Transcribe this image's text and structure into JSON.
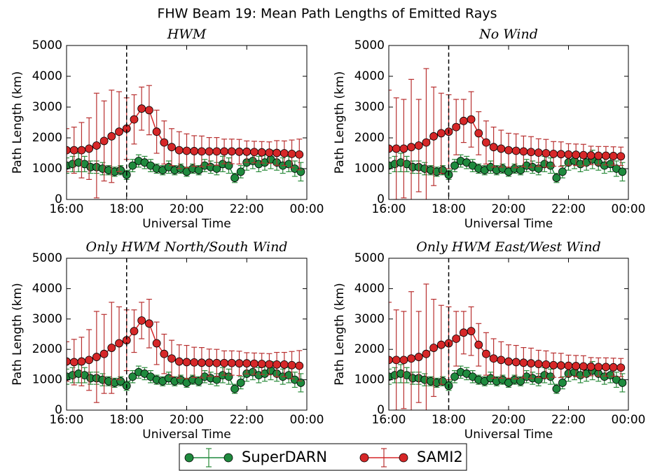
{
  "title": "FHW Beam 19: Mean Path Lengths of Emitted Rays",
  "chart_data": [
    {
      "type": "errorbar",
      "title": "HWM",
      "xlabel": "Universal Time",
      "ylabel": "Path Length (km)",
      "xlim": [
        16,
        24
      ],
      "ylim": [
        0,
        5000
      ],
      "xticks": [
        {
          "value": 16,
          "label": "16:00"
        },
        {
          "value": 18,
          "label": "18:00"
        },
        {
          "value": 20,
          "label": "20:00"
        },
        {
          "value": 22,
          "label": "22:00"
        },
        {
          "value": 24,
          "label": "00:00"
        }
      ],
      "yticks": [
        0,
        1000,
        2000,
        3000,
        4000,
        5000
      ],
      "vline": 18,
      "series": [
        {
          "name": "SuperDARN",
          "color": "#1f8a3e",
          "x": [
            16.0,
            16.2,
            16.4,
            16.6,
            16.8,
            17.0,
            17.2,
            17.4,
            17.6,
            17.8,
            18.0,
            18.2,
            18.4,
            18.6,
            18.8,
            19.0,
            19.2,
            19.4,
            19.6,
            19.8,
            20.0,
            20.2,
            20.4,
            20.6,
            20.8,
            21.0,
            21.2,
            21.4,
            21.6,
            21.8,
            22.0,
            22.2,
            22.4,
            22.6,
            22.8,
            23.0,
            23.2,
            23.4,
            23.6,
            23.8
          ],
          "values": [
            1100,
            1150,
            1200,
            1150,
            1050,
            1050,
            1000,
            950,
            900,
            950,
            800,
            1100,
            1250,
            1200,
            1100,
            1000,
            950,
            1050,
            950,
            1000,
            900,
            1000,
            950,
            1100,
            1050,
            1000,
            1150,
            1100,
            700,
            900,
            1200,
            1250,
            1150,
            1200,
            1300,
            1200,
            1100,
            1150,
            1000,
            900
          ],
          "errors": [
            250,
            250,
            300,
            250,
            200,
            200,
            200,
            150,
            150,
            150,
            150,
            200,
            200,
            200,
            200,
            150,
            150,
            200,
            150,
            150,
            150,
            150,
            150,
            200,
            200,
            200,
            250,
            250,
            150,
            200,
            250,
            250,
            250,
            250,
            300,
            250,
            250,
            250,
            250,
            300
          ]
        },
        {
          "name": "SAMI2",
          "color": "#d62728",
          "x": [
            16.0,
            16.25,
            16.5,
            16.75,
            17.0,
            17.25,
            17.5,
            17.75,
            18.0,
            18.25,
            18.5,
            18.75,
            19.0,
            19.25,
            19.5,
            19.75,
            20.0,
            20.25,
            20.5,
            20.75,
            21.0,
            21.25,
            21.5,
            21.75,
            22.0,
            22.25,
            22.5,
            22.75,
            23.0,
            23.25,
            23.5,
            23.75
          ],
          "values": [
            1600,
            1600,
            1600,
            1650,
            1750,
            1900,
            2050,
            2200,
            2300,
            2600,
            2950,
            2900,
            2200,
            1850,
            1700,
            1600,
            1580,
            1570,
            1560,
            1560,
            1560,
            1560,
            1560,
            1550,
            1550,
            1540,
            1530,
            1520,
            1510,
            1500,
            1480,
            1460
          ],
          "errors": [
            700,
            750,
            900,
            1000,
            1700,
            1300,
            1500,
            1300,
            1000,
            800,
            700,
            800,
            700,
            700,
            600,
            600,
            550,
            500,
            500,
            450,
            450,
            400,
            400,
            400,
            350,
            350,
            350,
            350,
            400,
            400,
            450,
            500
          ]
        }
      ]
    },
    {
      "type": "errorbar",
      "title": "No Wind",
      "xlabel": "Universal Time",
      "ylabel": "Path Length (km)",
      "xlim": [
        16,
        24
      ],
      "ylim": [
        0,
        5000
      ],
      "xticks": [
        {
          "value": 16,
          "label": "16:00"
        },
        {
          "value": 18,
          "label": "18:00"
        },
        {
          "value": 20,
          "label": "20:00"
        },
        {
          "value": 22,
          "label": "22:00"
        },
        {
          "value": 24,
          "label": "00:00"
        }
      ],
      "yticks": [
        0,
        1000,
        2000,
        3000,
        4000,
        5000
      ],
      "vline": 18,
      "series": [
        {
          "name": "SuperDARN",
          "color": "#1f8a3e",
          "x": [
            16.0,
            16.2,
            16.4,
            16.6,
            16.8,
            17.0,
            17.2,
            17.4,
            17.6,
            17.8,
            18.0,
            18.2,
            18.4,
            18.6,
            18.8,
            19.0,
            19.2,
            19.4,
            19.6,
            19.8,
            20.0,
            20.2,
            20.4,
            20.6,
            20.8,
            21.0,
            21.2,
            21.4,
            21.6,
            21.8,
            22.0,
            22.2,
            22.4,
            22.6,
            22.8,
            23.0,
            23.2,
            23.4,
            23.6,
            23.8
          ],
          "values": [
            1100,
            1150,
            1200,
            1150,
            1050,
            1050,
            1000,
            950,
            900,
            950,
            800,
            1100,
            1250,
            1200,
            1100,
            1000,
            950,
            1050,
            950,
            1000,
            900,
            1000,
            950,
            1100,
            1050,
            1000,
            1150,
            1100,
            700,
            900,
            1200,
            1250,
            1150,
            1200,
            1300,
            1200,
            1100,
            1150,
            1000,
            900
          ],
          "errors": [
            250,
            250,
            300,
            250,
            200,
            200,
            200,
            150,
            150,
            150,
            150,
            200,
            200,
            200,
            200,
            150,
            150,
            200,
            150,
            150,
            150,
            150,
            150,
            200,
            200,
            200,
            250,
            250,
            150,
            200,
            250,
            250,
            250,
            250,
            300,
            250,
            250,
            250,
            250,
            300
          ]
        },
        {
          "name": "SAMI2",
          "color": "#d62728",
          "x": [
            16.0,
            16.25,
            16.5,
            16.75,
            17.0,
            17.25,
            17.5,
            17.75,
            18.0,
            18.25,
            18.5,
            18.75,
            19.0,
            19.25,
            19.5,
            19.75,
            20.0,
            20.25,
            20.5,
            20.75,
            21.0,
            21.25,
            21.5,
            21.75,
            22.0,
            22.25,
            22.5,
            22.75,
            23.0,
            23.25,
            23.5,
            23.75
          ],
          "values": [
            1650,
            1650,
            1650,
            1700,
            1750,
            1850,
            2050,
            2150,
            2200,
            2350,
            2550,
            2600,
            2150,
            1850,
            1700,
            1650,
            1600,
            1580,
            1560,
            1540,
            1520,
            1500,
            1480,
            1470,
            1460,
            1450,
            1440,
            1430,
            1420,
            1420,
            1410,
            1400
          ],
          "errors": [
            1900,
            1650,
            1600,
            2200,
            1500,
            2400,
            1600,
            1300,
            1200,
            900,
            700,
            900,
            700,
            700,
            650,
            600,
            550,
            550,
            500,
            500,
            450,
            450,
            400,
            400,
            350,
            350,
            350,
            300,
            300,
            300,
            300,
            300
          ]
        }
      ]
    },
    {
      "type": "errorbar",
      "title": "Only HWM North/South Wind",
      "xlabel": "Universal Time",
      "ylabel": "Path Length (km)",
      "xlim": [
        16,
        24
      ],
      "ylim": [
        0,
        5000
      ],
      "xticks": [
        {
          "value": 16,
          "label": "16:00"
        },
        {
          "value": 18,
          "label": "18:00"
        },
        {
          "value": 20,
          "label": "20:00"
        },
        {
          "value": 22,
          "label": "22:00"
        },
        {
          "value": 24,
          "label": "00:00"
        }
      ],
      "yticks": [
        0,
        1000,
        2000,
        3000,
        4000,
        5000
      ],
      "vline": 18,
      "series": [
        {
          "name": "SuperDARN",
          "color": "#1f8a3e",
          "x": [
            16.0,
            16.2,
            16.4,
            16.6,
            16.8,
            17.0,
            17.2,
            17.4,
            17.6,
            17.8,
            18.0,
            18.2,
            18.4,
            18.6,
            18.8,
            19.0,
            19.2,
            19.4,
            19.6,
            19.8,
            20.0,
            20.2,
            20.4,
            20.6,
            20.8,
            21.0,
            21.2,
            21.4,
            21.6,
            21.8,
            22.0,
            22.2,
            22.4,
            22.6,
            22.8,
            23.0,
            23.2,
            23.4,
            23.6,
            23.8
          ],
          "values": [
            1100,
            1150,
            1200,
            1150,
            1050,
            1050,
            1000,
            950,
            900,
            950,
            800,
            1100,
            1250,
            1200,
            1100,
            1000,
            950,
            1050,
            950,
            1000,
            900,
            1000,
            950,
            1100,
            1050,
            1000,
            1150,
            1100,
            700,
            900,
            1200,
            1250,
            1150,
            1200,
            1300,
            1200,
            1100,
            1150,
            1000,
            900
          ],
          "errors": [
            250,
            250,
            300,
            250,
            200,
            200,
            200,
            150,
            150,
            150,
            150,
            200,
            200,
            200,
            200,
            150,
            150,
            200,
            150,
            150,
            150,
            150,
            150,
            200,
            200,
            200,
            250,
            250,
            150,
            200,
            250,
            250,
            250,
            250,
            300,
            250,
            250,
            250,
            250,
            300
          ]
        },
        {
          "name": "SAMI2",
          "color": "#d62728",
          "x": [
            16.0,
            16.25,
            16.5,
            16.75,
            17.0,
            17.25,
            17.5,
            17.75,
            18.0,
            18.25,
            18.5,
            18.75,
            19.0,
            19.25,
            19.5,
            19.75,
            20.0,
            20.25,
            20.5,
            20.75,
            21.0,
            21.25,
            21.5,
            21.75,
            22.0,
            22.25,
            22.5,
            22.75,
            23.0,
            23.25,
            23.5,
            23.75
          ],
          "values": [
            1600,
            1580,
            1600,
            1650,
            1750,
            1850,
            2050,
            2200,
            2300,
            2600,
            2950,
            2850,
            2200,
            1850,
            1700,
            1600,
            1580,
            1570,
            1560,
            1560,
            1550,
            1550,
            1550,
            1540,
            1540,
            1530,
            1520,
            1510,
            1500,
            1500,
            1480,
            1460
          ],
          "errors": [
            650,
            750,
            800,
            1000,
            1500,
            1300,
            1500,
            1200,
            1000,
            700,
            600,
            800,
            700,
            650,
            600,
            550,
            550,
            500,
            500,
            450,
            450,
            400,
            400,
            400,
            350,
            350,
            350,
            350,
            400,
            400,
            450,
            500
          ]
        }
      ]
    },
    {
      "type": "errorbar",
      "title": "Only HWM East/West Wind",
      "xlabel": "Universal Time",
      "ylabel": "Path Length (km)",
      "xlim": [
        16,
        24
      ],
      "ylim": [
        0,
        5000
      ],
      "xticks": [
        {
          "value": 16,
          "label": "16:00"
        },
        {
          "value": 18,
          "label": "18:00"
        },
        {
          "value": 20,
          "label": "20:00"
        },
        {
          "value": 22,
          "label": "22:00"
        },
        {
          "value": 24,
          "label": "00:00"
        }
      ],
      "yticks": [
        0,
        1000,
        2000,
        3000,
        4000,
        5000
      ],
      "vline": 18,
      "series": [
        {
          "name": "SuperDARN",
          "color": "#1f8a3e",
          "x": [
            16.0,
            16.2,
            16.4,
            16.6,
            16.8,
            17.0,
            17.2,
            17.4,
            17.6,
            17.8,
            18.0,
            18.2,
            18.4,
            18.6,
            18.8,
            19.0,
            19.2,
            19.4,
            19.6,
            19.8,
            20.0,
            20.2,
            20.4,
            20.6,
            20.8,
            21.0,
            21.2,
            21.4,
            21.6,
            21.8,
            22.0,
            22.2,
            22.4,
            22.6,
            22.8,
            23.0,
            23.2,
            23.4,
            23.6,
            23.8
          ],
          "values": [
            1100,
            1150,
            1200,
            1150,
            1050,
            1050,
            1000,
            950,
            900,
            950,
            800,
            1100,
            1250,
            1200,
            1100,
            1000,
            950,
            1050,
            950,
            1000,
            900,
            1000,
            950,
            1100,
            1050,
            1000,
            1150,
            1100,
            700,
            900,
            1200,
            1250,
            1150,
            1200,
            1300,
            1200,
            1100,
            1150,
            1000,
            900
          ],
          "errors": [
            250,
            250,
            300,
            250,
            200,
            200,
            200,
            150,
            150,
            150,
            150,
            200,
            200,
            200,
            200,
            150,
            150,
            200,
            150,
            150,
            150,
            150,
            150,
            200,
            200,
            200,
            250,
            250,
            150,
            200,
            250,
            250,
            250,
            250,
            300,
            250,
            250,
            250,
            250,
            300
          ]
        },
        {
          "name": "SAMI2",
          "color": "#d62728",
          "x": [
            16.0,
            16.25,
            16.5,
            16.75,
            17.0,
            17.25,
            17.5,
            17.75,
            18.0,
            18.25,
            18.5,
            18.75,
            19.0,
            19.25,
            19.5,
            19.75,
            20.0,
            20.25,
            20.5,
            20.75,
            21.0,
            21.25,
            21.5,
            21.75,
            22.0,
            22.25,
            22.5,
            22.75,
            23.0,
            23.25,
            23.5,
            23.75
          ],
          "values": [
            1650,
            1650,
            1650,
            1700,
            1750,
            1850,
            2050,
            2150,
            2200,
            2350,
            2550,
            2600,
            2150,
            1850,
            1700,
            1650,
            1600,
            1580,
            1560,
            1540,
            1520,
            1500,
            1480,
            1470,
            1460,
            1450,
            1440,
            1430,
            1420,
            1420,
            1410,
            1400
          ],
          "errors": [
            1900,
            1650,
            1600,
            2200,
            1500,
            2300,
            1600,
            1300,
            1200,
            900,
            700,
            800,
            700,
            700,
            650,
            600,
            550,
            550,
            500,
            500,
            450,
            450,
            400,
            400,
            350,
            350,
            350,
            300,
            300,
            300,
            300,
            300
          ]
        }
      ]
    }
  ]
}
